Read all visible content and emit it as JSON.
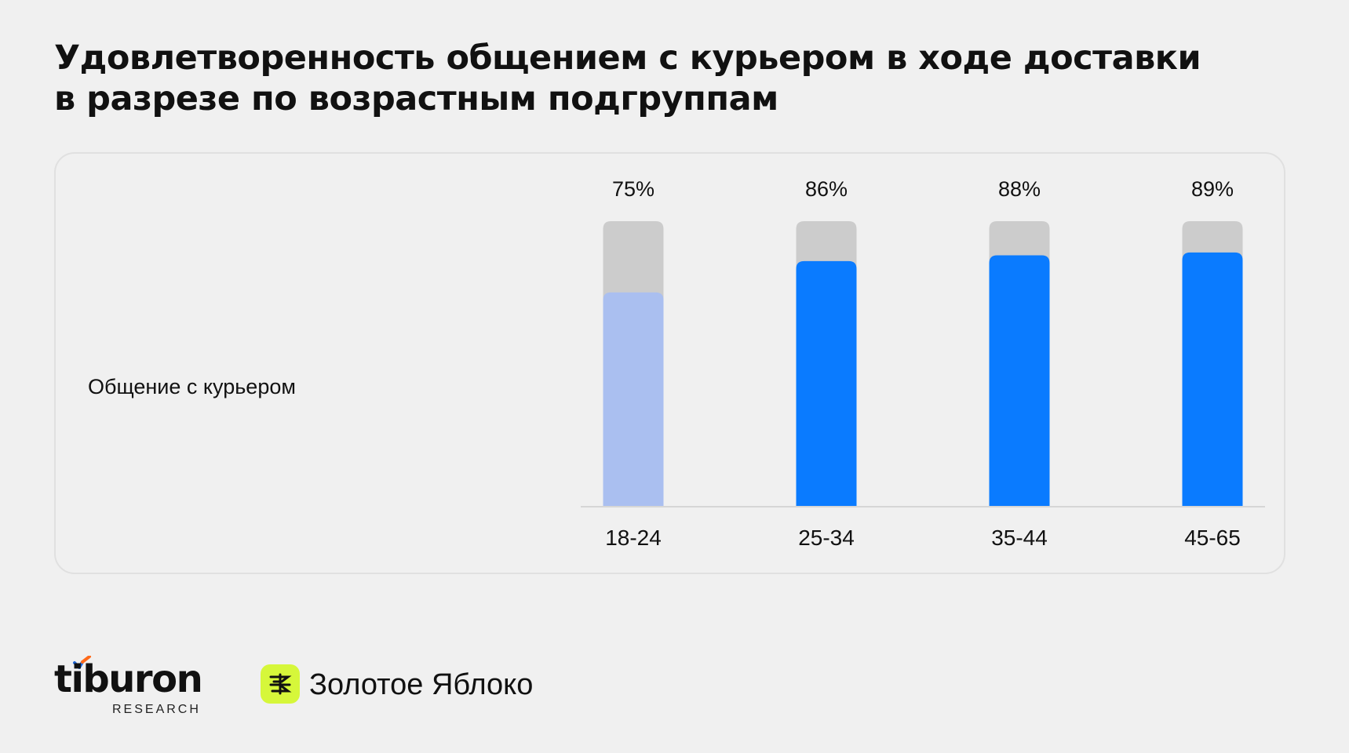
{
  "title_line1": "Удовлетворенность общением с курьером в ходе доставки",
  "title_line2": "в разрезе по возрастным подгруппам",
  "chart_data": {
    "type": "bar",
    "title": "Удовлетворенность общением с курьером в ходе доставки в разрезе по возрастным подгруппам",
    "row_label": "Общение с курьером",
    "categories": [
      "18-24",
      "25-34",
      "35-44",
      "45-65"
    ],
    "values": [
      75,
      86,
      88,
      89
    ],
    "value_labels": [
      "75%",
      "86%",
      "88%",
      "89%"
    ],
    "ylim": [
      0,
      100
    ],
    "colors": {
      "highlight": "#aabff0",
      "primary": "#0a7bff",
      "track": "#cccccc",
      "baseline": "#d6d6d6"
    },
    "highlighted_index": 0
  },
  "footer": {
    "brand1_name": "tiburon",
    "brand1_sub": "RESEARCH",
    "brand2_name": "Золотое Яблоко",
    "brand2_icon": "golden-apple-logo-icon",
    "brand2_color": "#d6f73a"
  }
}
